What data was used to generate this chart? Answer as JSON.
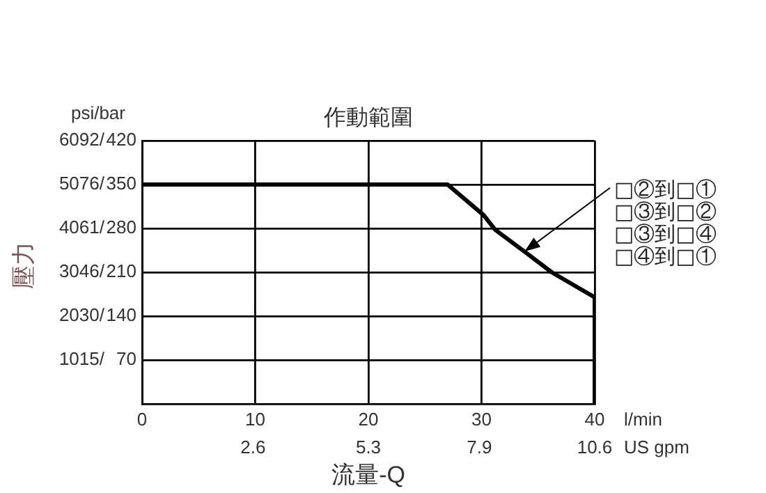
{
  "chart_data": {
    "type": "line",
    "title": "作動範圍",
    "xlabel": "流量-Q",
    "ylabel": "壓力",
    "annotations": [
      "psi/bar",
      "l/min",
      "US gpm",
      {
        "text": "□②到□①\n□③到□②\n□③到□④\n□④到□①",
        "x": 33.8,
        "y": 3524
      }
    ],
    "series": [
      {
        "color": "#000000",
        "axis": "y2",
        "x": [
          0,
          27,
          30.2,
          31.2,
          33.8,
          36.2,
          40,
          40
        ],
        "values": [
          350,
          350,
          301,
          278,
          243,
          210,
          170,
          0
        ]
      }
    ],
    "xlim": [
      0,
      40
    ],
    "xticks": [
      0,
      10,
      20,
      30,
      40
    ],
    "x2lim": [
      0,
      10.6
    ],
    "x2ticks": [
      2.6,
      5.3,
      7.9,
      10.6
    ],
    "ylim": [
      0,
      6092
    ],
    "yticks": [
      {
        "value": 1015,
        "label": "1015/"
      },
      {
        "value": 2030,
        "label": "2030/"
      },
      {
        "value": 3046,
        "label": "3046/"
      },
      {
        "value": 4061,
        "label": "4061/"
      },
      {
        "value": 5076,
        "label": "5076/"
      },
      {
        "value": 6092,
        "label": "6092/"
      }
    ],
    "y2lim": [
      0,
      420
    ],
    "y2ticks": [
      70,
      140,
      210,
      280,
      350,
      420
    ],
    "grid": true,
    "legend": false,
    "marker": "none",
    "line_style": "solid"
  }
}
